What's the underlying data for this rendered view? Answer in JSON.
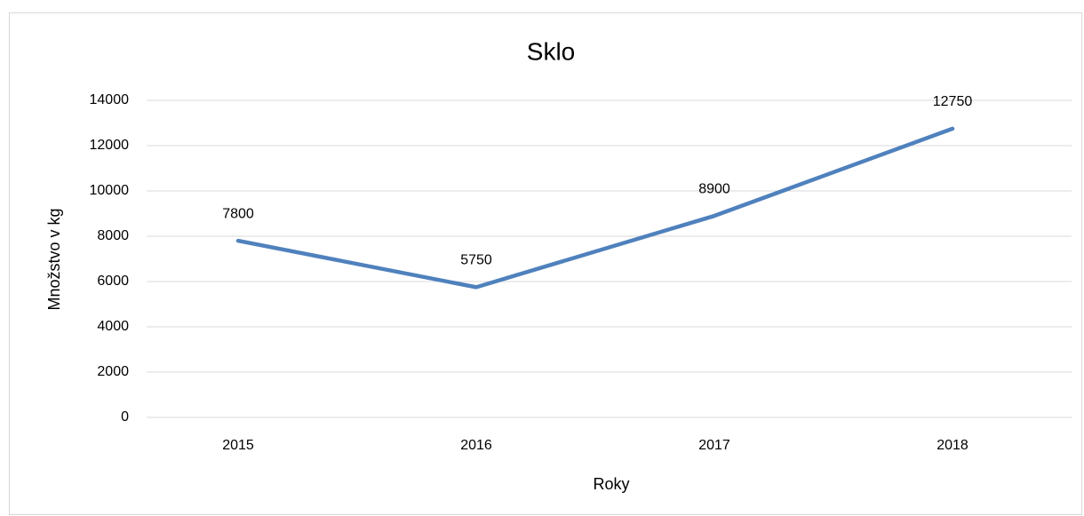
{
  "chart_data": {
    "type": "line",
    "title": "Sklo",
    "x_label": "Roky",
    "y_label": "Množstvo v kg",
    "categories": [
      "2015",
      "2016",
      "2017",
      "2018"
    ],
    "series": [
      {
        "name": "Sklo",
        "color": "#4f81bd",
        "values": [
          7800,
          5750,
          8900,
          12750
        ]
      }
    ],
    "ylim": [
      0,
      14000
    ],
    "yticks": [
      0,
      2000,
      4000,
      6000,
      8000,
      10000,
      12000,
      14000
    ],
    "grid": true,
    "data_labels": true
  }
}
